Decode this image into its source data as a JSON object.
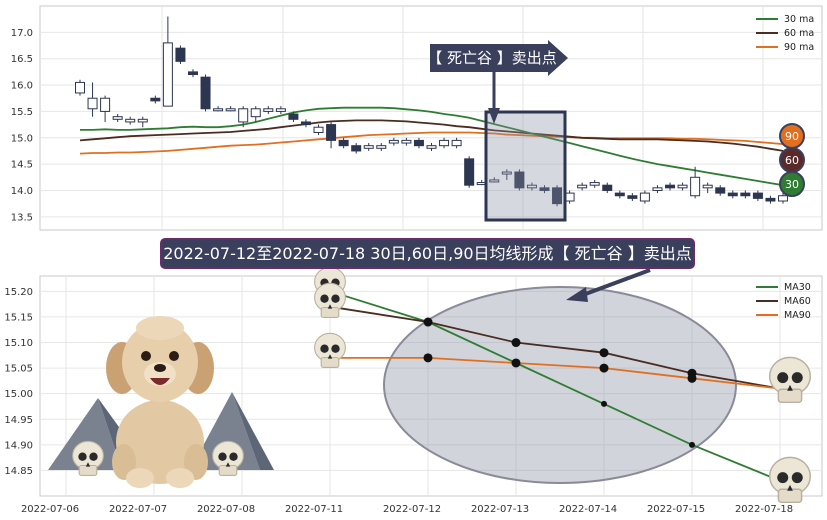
{
  "chart_data": [
    {
      "type": "candlestick",
      "yticks": [
        "17.0",
        "16.5",
        "16.0",
        "15.5",
        "15.0",
        "14.5",
        "14.0",
        "13.5"
      ],
      "ylim": [
        13.25,
        17.5
      ],
      "legend": [
        {
          "name": "30 ma",
          "color": "#2e7d32"
        },
        {
          "name": "60 ma",
          "color": "#4a2c20"
        },
        {
          "name": "90 ma",
          "color": "#e07020"
        }
      ],
      "legend_position": "top-right",
      "callout": "【 死亡谷 】卖出点",
      "badges": [
        "90",
        "60",
        "30"
      ],
      "candles": [
        [
          15.85,
          16.05,
          15.8,
          16.1
        ],
        [
          15.55,
          15.75,
          15.4,
          16.05
        ],
        [
          15.5,
          15.75,
          15.3,
          15.8
        ],
        [
          15.35,
          15.4,
          15.3,
          15.45
        ],
        [
          15.3,
          15.35,
          15.25,
          15.4
        ],
        [
          15.3,
          15.35,
          15.2,
          15.4
        ],
        [
          15.75,
          15.7,
          15.65,
          15.8
        ],
        [
          15.6,
          16.8,
          15.6,
          17.3
        ],
        [
          16.7,
          16.45,
          16.4,
          16.75
        ],
        [
          16.25,
          16.2,
          16.15,
          16.3
        ],
        [
          16.15,
          15.55,
          15.5,
          16.2
        ],
        [
          15.55,
          15.55,
          15.5,
          15.6
        ],
        [
          15.55,
          15.55,
          15.5,
          15.6
        ],
        [
          15.3,
          15.55,
          15.2,
          15.6
        ],
        [
          15.4,
          15.55,
          15.3,
          15.6
        ],
        [
          15.5,
          15.55,
          15.45,
          15.6
        ],
        [
          15.5,
          15.55,
          15.45,
          15.6
        ],
        [
          15.45,
          15.35,
          15.3,
          15.5
        ],
        [
          15.3,
          15.25,
          15.2,
          15.35
        ],
        [
          15.1,
          15.2,
          15.05,
          15.25
        ],
        [
          15.25,
          14.95,
          14.8,
          15.3
        ],
        [
          14.95,
          14.85,
          14.8,
          15.0
        ],
        [
          14.85,
          14.75,
          14.7,
          14.9
        ],
        [
          14.8,
          14.85,
          14.75,
          14.9
        ],
        [
          14.8,
          14.85,
          14.75,
          14.9
        ],
        [
          14.9,
          14.95,
          14.85,
          15.0
        ],
        [
          14.9,
          14.95,
          14.85,
          15.0
        ],
        [
          14.95,
          14.85,
          14.8,
          15.0
        ],
        [
          14.8,
          14.85,
          14.75,
          14.9
        ],
        [
          14.85,
          14.95,
          14.8,
          15.0
        ],
        [
          14.85,
          14.95,
          14.8,
          15.0
        ],
        [
          14.6,
          14.1,
          14.05,
          14.65
        ],
        [
          14.15,
          14.15,
          14.1,
          14.2
        ],
        [
          14.2,
          14.2,
          14.15,
          14.25
        ],
        [
          14.35,
          14.35,
          14.2,
          14.4
        ],
        [
          14.35,
          14.05,
          14.0,
          14.4
        ],
        [
          14.05,
          14.1,
          14.0,
          14.15
        ],
        [
          14.05,
          14.0,
          13.95,
          14.1
        ],
        [
          14.05,
          13.75,
          13.7,
          14.1
        ],
        [
          13.8,
          13.95,
          13.75,
          14.0
        ],
        [
          14.05,
          14.1,
          14.0,
          14.15
        ],
        [
          14.1,
          14.15,
          14.05,
          14.2
        ],
        [
          14.1,
          14.0,
          13.95,
          14.15
        ],
        [
          13.95,
          13.9,
          13.85,
          14.0
        ],
        [
          13.9,
          13.85,
          13.8,
          13.95
        ],
        [
          13.8,
          13.95,
          13.75,
          14.0
        ],
        [
          14.0,
          14.05,
          13.95,
          14.1
        ],
        [
          14.1,
          14.05,
          14.0,
          14.15
        ],
        [
          14.05,
          14.1,
          14.0,
          14.15
        ],
        [
          13.9,
          14.25,
          13.85,
          14.45
        ],
        [
          14.05,
          14.1,
          13.95,
          14.15
        ],
        [
          14.05,
          13.95,
          13.9,
          14.1
        ],
        [
          13.95,
          13.9,
          13.85,
          14.0
        ],
        [
          13.95,
          13.9,
          13.85,
          14.0
        ],
        [
          13.95,
          13.85,
          13.8,
          14.0
        ],
        [
          13.85,
          13.8,
          13.75,
          13.9
        ],
        [
          13.8,
          13.9,
          13.75,
          13.95
        ]
      ],
      "ma30": [
        15.15,
        15.15,
        15.16,
        15.15,
        15.15,
        15.16,
        15.17,
        15.18,
        15.2,
        15.21,
        15.2,
        15.2,
        15.22,
        15.25,
        15.3,
        15.36,
        15.42,
        15.48,
        15.52,
        15.55,
        15.56,
        15.57,
        15.57,
        15.57,
        15.57,
        15.56,
        15.54,
        15.52,
        15.49,
        15.45,
        15.42,
        15.38,
        15.32,
        15.26,
        15.2,
        15.14,
        15.08,
        15.02,
        14.96,
        14.9,
        14.84,
        14.78,
        14.72,
        14.66,
        14.6,
        14.55,
        14.5,
        14.46,
        14.42,
        14.38,
        14.34,
        14.3,
        14.26,
        14.22,
        14.18,
        14.14,
        14.1
      ],
      "ma60": [
        14.95,
        14.97,
        14.99,
        15.01,
        15.03,
        15.04,
        15.05,
        15.06,
        15.07,
        15.08,
        15.09,
        15.1,
        15.11,
        15.13,
        15.15,
        15.17,
        15.2,
        15.23,
        15.26,
        15.29,
        15.31,
        15.32,
        15.33,
        15.33,
        15.33,
        15.32,
        15.31,
        15.29,
        15.27,
        15.25,
        15.22,
        15.2,
        15.17,
        15.14,
        15.12,
        15.1,
        15.08,
        15.06,
        15.04,
        15.02,
        15.0,
        14.99,
        14.98,
        14.97,
        14.97,
        14.97,
        14.97,
        14.96,
        14.95,
        14.94,
        14.93,
        14.91,
        14.89,
        14.86,
        14.83,
        14.79,
        14.75
      ],
      "ma90": [
        14.7,
        14.71,
        14.71,
        14.72,
        14.72,
        14.73,
        14.74,
        14.75,
        14.77,
        14.79,
        14.81,
        14.83,
        14.85,
        14.86,
        14.87,
        14.89,
        14.91,
        14.93,
        14.95,
        14.97,
        14.99,
        15.01,
        15.03,
        15.05,
        15.06,
        15.07,
        15.08,
        15.09,
        15.1,
        15.1,
        15.1,
        15.1,
        15.09,
        15.08,
        15.06,
        15.05,
        15.04,
        15.03,
        15.02,
        15.01,
        15.0,
        15.0,
        14.99,
        14.99,
        14.99,
        14.99,
        14.99,
        14.99,
        14.98,
        14.98,
        14.97,
        14.96,
        14.95,
        14.94,
        14.92,
        14.9,
        14.88
      ]
    },
    {
      "type": "line",
      "title": "2022-07-12至2022-07-18 30日,60日,90日均线形成【 死亡谷 】卖出点",
      "categories": [
        "2022-07-06",
        "2022-07-07",
        "2022-07-08",
        "2022-07-11",
        "2022-07-12",
        "2022-07-13",
        "2022-07-14",
        "2022-07-15",
        "2022-07-18"
      ],
      "yticks": [
        "15.20",
        "15.15",
        "15.10",
        "15.05",
        "15.00",
        "14.95",
        "14.90",
        "14.85"
      ],
      "ylim": [
        14.8,
        15.23
      ],
      "legend_position": "top-right",
      "series": [
        {
          "name": "MA30",
          "color": "#2e7d32",
          "values": [
            null,
            null,
            null,
            15.2,
            15.14,
            15.06,
            14.98,
            14.9,
            14.83
          ]
        },
        {
          "name": "MA60",
          "color": "#4a2c20",
          "values": [
            null,
            null,
            null,
            15.17,
            15.14,
            15.1,
            15.08,
            15.04,
            15.01
          ]
        },
        {
          "name": "MA90",
          "color": "#e07020",
          "values": [
            null,
            null,
            null,
            15.07,
            15.07,
            15.06,
            15.05,
            15.03,
            15.01
          ]
        }
      ]
    }
  ]
}
